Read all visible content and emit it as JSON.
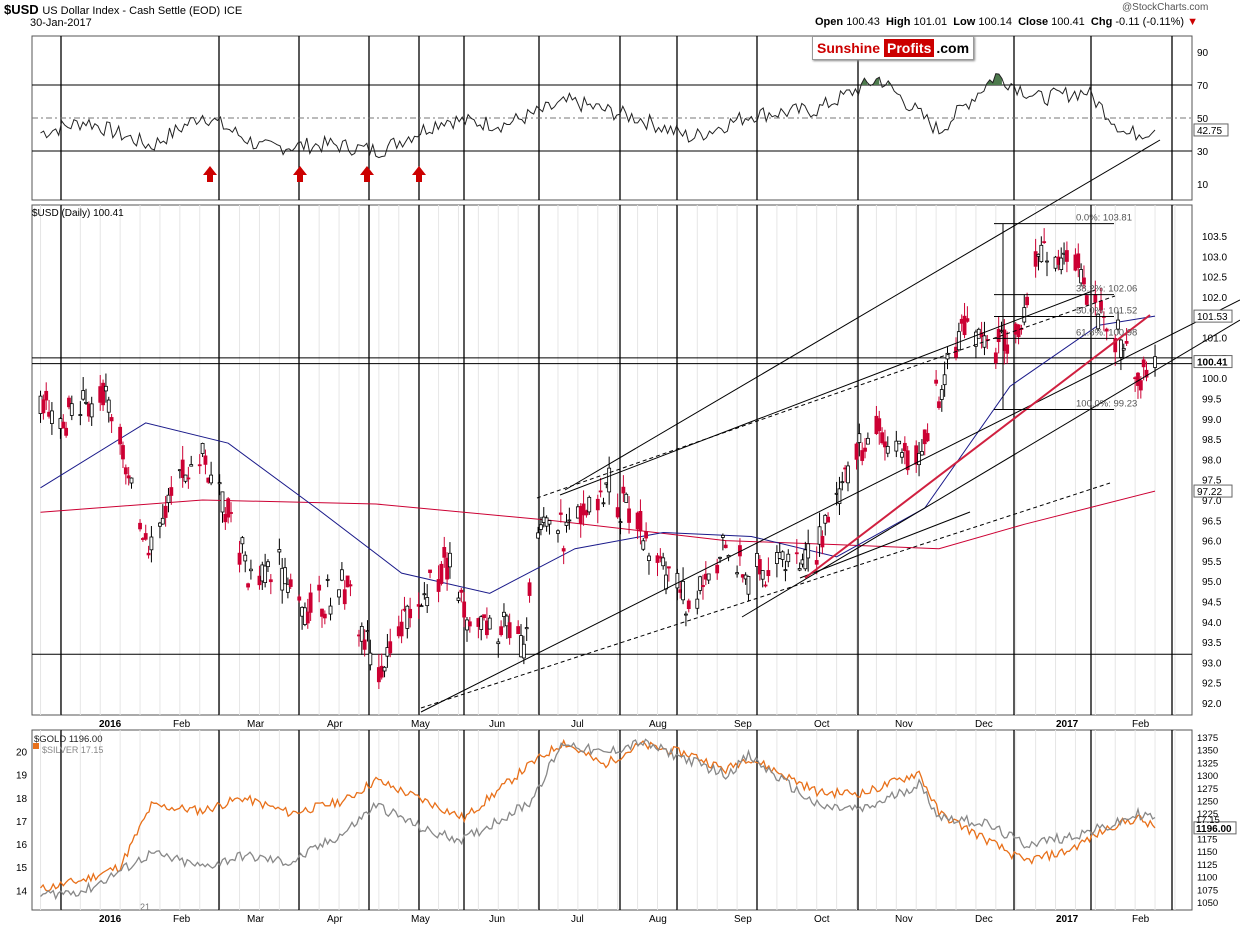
{
  "header": {
    "symbol": "$USD",
    "name": "US Dollar Index - Cash Settle (EOD)",
    "exchange": "ICE",
    "date": "30-Jan-2017",
    "open_label": "Open",
    "open": "100.43",
    "high_label": "High",
    "high": "101.01",
    "low_label": "Low",
    "low": "100.14",
    "close_label": "Close",
    "close": "100.41",
    "chg_label": "Chg",
    "chg": "-0.11 (-0.11%)",
    "watermark": "@StockCharts.com"
  },
  "logo": {
    "part1": "Sunshine",
    "part2": "Profits",
    "part3": ".com"
  },
  "colors": {
    "up": "#000000",
    "down": "#cc0033",
    "ma50": "#1a1a8a",
    "ma200": "#cc0033",
    "gold": "#e8701a",
    "silver": "#888888",
    "rsi_fill": "#4d7a4d",
    "arrow": "#cc0000",
    "trend_red": "#d02040"
  },
  "chart_data": [
    {
      "panel": "rsi",
      "type": "line",
      "title": "",
      "y_ticks": [
        10,
        30,
        50,
        70,
        90
      ],
      "ylim": [
        0,
        100
      ],
      "current_value": "42.75",
      "x": [
        "2016-01-04",
        "2016-01-20",
        "2016-02-12",
        "2016-03-01",
        "2016-03-22",
        "2016-04-15",
        "2016-05-02",
        "2016-05-25",
        "2016-06-15",
        "2016-07-08",
        "2016-08-01",
        "2016-08-20",
        "2016-09-10",
        "2016-10-03",
        "2016-10-25",
        "2016-11-15",
        "2016-12-05",
        "2016-12-20",
        "2017-01-06",
        "2017-01-20",
        "2017-01-30"
      ],
      "values": [
        41,
        48,
        33,
        52,
        32,
        34,
        30,
        49,
        46,
        60,
        50,
        38,
        52,
        55,
        74,
        42,
        76,
        62,
        66,
        40,
        42.75
      ],
      "signal_arrows": [
        "2016-02-12",
        "2016-03-22",
        "2016-04-15",
        "2016-05-02"
      ]
    },
    {
      "panel": "price",
      "type": "candlestick",
      "title": "$USD (Daily) 100.41",
      "y_ticks": [
        92.0,
        92.5,
        93.0,
        93.5,
        94.0,
        94.5,
        95.0,
        95.5,
        96.0,
        96.5,
        97.0,
        97.5,
        98.0,
        98.5,
        99.0,
        99.5,
        100.0,
        100.5,
        101.0,
        101.5,
        102.0,
        102.5,
        103.0,
        103.5
      ],
      "ylim": [
        91.8,
        104.0
      ],
      "price_labels": [
        "101.53",
        "100.41",
        "97.22"
      ],
      "x_ticks": [
        "2016",
        "Feb",
        "Mar",
        "Apr",
        "May",
        "Jun",
        "Jul",
        "Aug",
        "Sep",
        "Oct",
        "Nov",
        "Dec",
        "2017",
        "Feb"
      ],
      "close_path": [
        {
          "d": "2016-01-04",
          "v": 99.4
        },
        {
          "d": "2016-01-12",
          "v": 98.9
        },
        {
          "d": "2016-01-20",
          "v": 99.3
        },
        {
          "d": "2016-01-28",
          "v": 99.6
        },
        {
          "d": "2016-02-05",
          "v": 97.0
        },
        {
          "d": "2016-02-12",
          "v": 96.1
        },
        {
          "d": "2016-02-22",
          "v": 97.4
        },
        {
          "d": "2016-03-01",
          "v": 98.1
        },
        {
          "d": "2016-03-10",
          "v": 96.9
        },
        {
          "d": "2016-03-17",
          "v": 95.1
        },
        {
          "d": "2016-03-28",
          "v": 95.4
        },
        {
          "d": "2016-04-07",
          "v": 94.2
        },
        {
          "d": "2016-04-20",
          "v": 94.9
        },
        {
          "d": "2016-05-02",
          "v": 92.6
        },
        {
          "d": "2016-05-12",
          "v": 94.0
        },
        {
          "d": "2016-05-25",
          "v": 95.5
        },
        {
          "d": "2016-06-03",
          "v": 94.0
        },
        {
          "d": "2016-06-10",
          "v": 94.1
        },
        {
          "d": "2016-06-22",
          "v": 93.6
        },
        {
          "d": "2016-06-27",
          "v": 96.2
        },
        {
          "d": "2016-07-08",
          "v": 96.3
        },
        {
          "d": "2016-07-22",
          "v": 97.4
        },
        {
          "d": "2016-08-05",
          "v": 95.8
        },
        {
          "d": "2016-08-18",
          "v": 94.4
        },
        {
          "d": "2016-09-01",
          "v": 95.9
        },
        {
          "d": "2016-09-09",
          "v": 95.1
        },
        {
          "d": "2016-09-22",
          "v": 95.5
        },
        {
          "d": "2016-10-03",
          "v": 95.6
        },
        {
          "d": "2016-10-14",
          "v": 97.9
        },
        {
          "d": "2016-10-25",
          "v": 98.7
        },
        {
          "d": "2016-11-08",
          "v": 97.8
        },
        {
          "d": "2016-11-15",
          "v": 99.8
        },
        {
          "d": "2016-11-25",
          "v": 101.5
        },
        {
          "d": "2016-12-05",
          "v": 100.8
        },
        {
          "d": "2016-12-14",
          "v": 101.3
        },
        {
          "d": "2016-12-20",
          "v": 103.2
        },
        {
          "d": "2016-12-30",
          "v": 102.9
        },
        {
          "d": "2017-01-06",
          "v": 102.3
        },
        {
          "d": "2017-01-13",
          "v": 101.3
        },
        {
          "d": "2017-01-20",
          "v": 100.7
        },
        {
          "d": "2017-01-24",
          "v": 99.8
        },
        {
          "d": "2017-01-30",
          "v": 100.41
        }
      ],
      "fibonacci": [
        {
          "label": "0.0%: 103.81",
          "value": 103.81
        },
        {
          "label": "38.2%: 102.06",
          "value": 102.06
        },
        {
          "label": "50.0%: 101.52",
          "value": 101.52
        },
        {
          "label": "61.8%: 100.98",
          "value": 100.98
        },
        {
          "label": "100.0%: 99.23",
          "value": 99.23
        }
      ],
      "horizontal_levels": [
        100.41,
        93.2
      ],
      "ma50_path": [
        [
          "2016-01-04",
          97.3
        ],
        [
          "2016-02-10",
          98.9
        ],
        [
          "2016-03-10",
          98.4
        ],
        [
          "2016-04-10",
          96.8
        ],
        [
          "2016-05-10",
          95.2
        ],
        [
          "2016-06-10",
          94.7
        ],
        [
          "2016-07-10",
          95.8
        ],
        [
          "2016-08-10",
          96.2
        ],
        [
          "2016-09-10",
          96.1
        ],
        [
          "2016-10-10",
          95.6
        ],
        [
          "2016-11-10",
          96.8
        ],
        [
          "2016-12-10",
          99.8
        ],
        [
          "2017-01-10",
          101.3
        ],
        [
          "2017-01-30",
          101.53
        ]
      ],
      "ma200_path": [
        [
          "2016-01-04",
          96.7
        ],
        [
          "2016-03-01",
          97.0
        ],
        [
          "2016-05-01",
          96.9
        ],
        [
          "2016-07-01",
          96.5
        ],
        [
          "2016-09-01",
          96.0
        ],
        [
          "2016-10-10",
          95.9
        ],
        [
          "2016-11-15",
          95.8
        ],
        [
          "2016-12-15",
          96.4
        ],
        [
          "2017-01-30",
          97.22
        ]
      ]
    },
    {
      "panel": "gold_silver",
      "type": "line",
      "title": "",
      "series": [
        {
          "name": "$GOLD 1196.00",
          "axis": "right",
          "values": [
            [
              "2016-01-04",
              1075
            ],
            [
              "2016-01-20",
              1095
            ],
            [
              "2016-02-01",
              1120
            ],
            [
              "2016-02-12",
              1240
            ],
            [
              "2016-03-01",
              1230
            ],
            [
              "2016-03-15",
              1255
            ],
            [
              "2016-04-01",
              1225
            ],
            [
              "2016-04-20",
              1250
            ],
            [
              "2016-05-01",
              1290
            ],
            [
              "2016-05-20",
              1245
            ],
            [
              "2016-06-01",
              1215
            ],
            [
              "2016-06-24",
              1320
            ],
            [
              "2016-07-06",
              1365
            ],
            [
              "2016-07-20",
              1320
            ],
            [
              "2016-08-02",
              1360
            ],
            [
              "2016-08-20",
              1340
            ],
            [
              "2016-09-01",
              1310
            ],
            [
              "2016-09-09",
              1335
            ],
            [
              "2016-10-04",
              1265
            ],
            [
              "2016-10-20",
              1265
            ],
            [
              "2016-11-08",
              1305
            ],
            [
              "2016-11-15",
              1225
            ],
            [
              "2016-12-01",
              1175
            ],
            [
              "2016-12-15",
              1130
            ],
            [
              "2016-12-30",
              1150
            ],
            [
              "2017-01-15",
              1200
            ],
            [
              "2017-01-24",
              1215
            ],
            [
              "2017-01-30",
              1196
            ]
          ]
        },
        {
          "name": "$SILVER 17.15",
          "axis": "left",
          "values": [
            [
              "2016-01-04",
              13.8
            ],
            [
              "2016-01-20",
              14.0
            ],
            [
              "2016-02-12",
              15.6
            ],
            [
              "2016-03-01",
              15.0
            ],
            [
              "2016-03-15",
              15.5
            ],
            [
              "2016-04-01",
              15.2
            ],
            [
              "2016-04-20",
              16.5
            ],
            [
              "2016-05-01",
              17.7
            ],
            [
              "2016-05-20",
              16.5
            ],
            [
              "2016-06-01",
              16.2
            ],
            [
              "2016-06-24",
              17.8
            ],
            [
              "2016-07-06",
              20.4
            ],
            [
              "2016-07-20",
              19.9
            ],
            [
              "2016-08-02",
              20.4
            ],
            [
              "2016-08-20",
              19.6
            ],
            [
              "2016-09-01",
              19.0
            ],
            [
              "2016-09-09",
              19.8
            ],
            [
              "2016-10-04",
              17.6
            ],
            [
              "2016-10-20",
              17.5
            ],
            [
              "2016-11-08",
              18.6
            ],
            [
              "2016-11-15",
              17.2
            ],
            [
              "2016-12-01",
              16.9
            ],
            [
              "2016-12-15",
              16.0
            ],
            [
              "2016-12-30",
              16.3
            ],
            [
              "2017-01-15",
              16.8
            ],
            [
              "2017-01-24",
              17.3
            ],
            [
              "2017-01-30",
              17.15
            ]
          ]
        }
      ],
      "left_ticks": [
        14,
        15,
        16,
        17,
        18,
        19,
        20
      ],
      "right_ticks": [
        1050,
        1075,
        1100,
        1125,
        1150,
        1175,
        1200,
        1225,
        1250,
        1275,
        1300,
        1325,
        1350,
        1375
      ],
      "last_labels": [
        "1196.00",
        "17.15"
      ],
      "x_ticks": [
        "2016",
        "Feb",
        "Mar",
        "Apr",
        "May",
        "Jun",
        "Jul",
        "Aug",
        "Sep",
        "Oct",
        "Nov",
        "Dec",
        "2017",
        "Feb"
      ]
    }
  ]
}
